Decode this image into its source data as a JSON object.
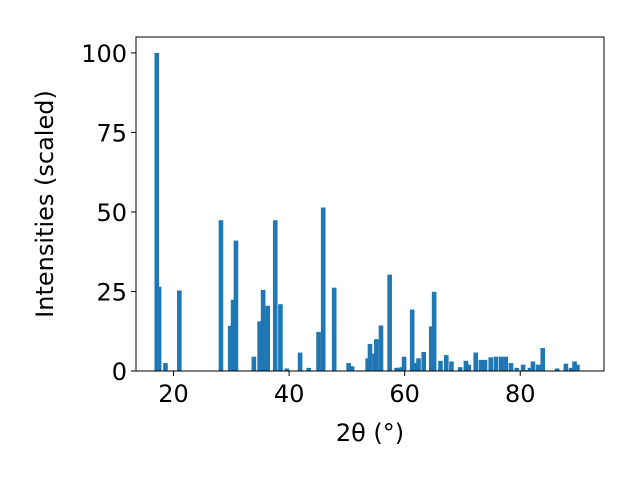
{
  "chart_data": {
    "type": "bar",
    "xlabel": "2θ (°)",
    "ylabel": "Intensities (scaled)",
    "xlim": [
      13.5,
      94.5
    ],
    "ylim": [
      0,
      105
    ],
    "grid": false,
    "bar_color": "#1f77b4",
    "xticks": [
      20,
      40,
      60,
      80
    ],
    "yticks": [
      0,
      25,
      50,
      75,
      100
    ],
    "x": [
      17.1,
      17.5,
      18.6,
      21.0,
      28.2,
      29.8,
      30.3,
      30.8,
      33.9,
      34.9,
      35.5,
      35.8,
      36.3,
      37.6,
      38.5,
      39.6,
      41.9,
      43.4,
      45.1,
      45.9,
      47.8,
      50.3,
      50.9,
      53.6,
      54.0,
      54.8,
      55.1,
      55.9,
      57.4,
      58.6,
      59.0,
      59.5,
      59.9,
      61.3,
      61.7,
      62.4,
      63.3,
      64.6,
      65.1,
      66.2,
      67.2,
      68.1,
      69.6,
      70.6,
      71.1,
      72.3,
      73.2,
      73.9,
      74.9,
      75.8,
      76.7,
      77.5,
      78.4,
      79.4,
      80.5,
      81.2,
      81.7,
      82.2,
      83.1,
      83.9,
      86.4,
      87.9,
      88.8,
      89.4,
      89.9
    ],
    "values": [
      100,
      26.5,
      2.5,
      25.3,
      47.4,
      14.2,
      22.4,
      41.0,
      4.5,
      15.6,
      25.5,
      17.0,
      20.5,
      47.4,
      21.0,
      0.8,
      5.8,
      1.0,
      12.3,
      51.4,
      26.2,
      2.5,
      1.5,
      4.0,
      8.5,
      5.5,
      10.0,
      14.3,
      30.3,
      1.0,
      1.0,
      1.2,
      4.5,
      19.3,
      2.5,
      4.0,
      6.0,
      14.0,
      24.9,
      3.2,
      5.0,
      3.0,
      1.2,
      3.2,
      2.0,
      5.8,
      3.5,
      3.5,
      4.3,
      4.5,
      4.5,
      4.5,
      2.5,
      1.0,
      2.0,
      0.3,
      1.0,
      3.0,
      2.0,
      7.2,
      0.8,
      2.3,
      1.0,
      3.0,
      2.0
    ]
  }
}
